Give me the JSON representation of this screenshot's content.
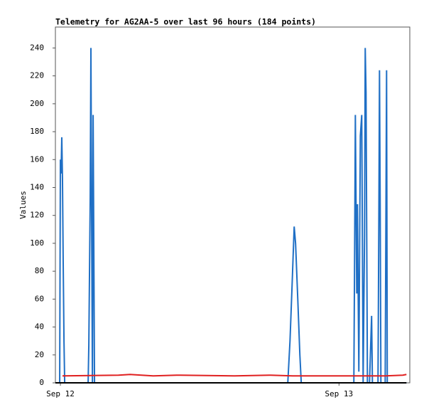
{
  "chart_data": {
    "type": "line",
    "title": "Telemetry for AG2AA-5 over last 96 hours (184 points)",
    "y_label": "Values",
    "xlim": [
      -0.43,
      30.1
    ],
    "xticks": [
      {
        "value": 0,
        "label": "Sep 12"
      },
      {
        "value": 24,
        "label": "Sep 13"
      }
    ],
    "ylim": [
      0,
      255
    ],
    "yticks": [
      0,
      20,
      40,
      60,
      80,
      100,
      120,
      140,
      160,
      180,
      200,
      220,
      240
    ],
    "grid": false,
    "series": [
      {
        "color": "#1f6fc5",
        "x": [
          -0.06,
          0,
          0.06,
          0.12,
          0.18,
          0.24,
          0.31,
          0.37,
          2.39,
          2.45,
          2.51,
          2.57,
          2.63,
          2.69,
          2.76,
          2.82,
          2.88,
          2.94,
          19.59,
          19.78,
          19.96,
          20.14,
          20.26,
          20.45,
          20.63,
          20.75,
          25.28,
          25.35,
          25.41,
          25.53,
          25.59,
          25.71,
          25.84,
          25.96,
          26.08,
          26.2,
          26.26,
          26.33,
          26.39,
          26.45,
          26.63,
          26.81,
          26.88,
          27.36,
          27.43,
          27.49,
          27.55,
          27.61,
          27.98,
          28.04,
          28.1,
          28.16,
          29.81
        ],
        "values": [
          0,
          160,
          150,
          176,
          146,
          88,
          30,
          0,
          0,
          27,
          80,
          133,
          240,
          120,
          0,
          192,
          97,
          0,
          0,
          30,
          70,
          112,
          100,
          60,
          20,
          0,
          0,
          97,
          192,
          64,
          128,
          8,
          177,
          192,
          0,
          105,
          240,
          208,
          104,
          0,
          0,
          48,
          0,
          0,
          112,
          224,
          128,
          0,
          0,
          112,
          224,
          0,
          0
        ]
      },
      {
        "color": "#e02020",
        "x": [
          0.18,
          5,
          6,
          8,
          10,
          15,
          18,
          20,
          25,
          28,
          29.5,
          29.81
        ],
        "values": [
          5,
          5.5,
          6,
          5,
          5.5,
          5,
          5.5,
          5,
          5,
          5,
          5.5,
          6
        ]
      },
      {
        "color": "#000000",
        "x": [
          -0.43,
          29.81
        ],
        "values": [
          0,
          0
        ]
      }
    ]
  }
}
